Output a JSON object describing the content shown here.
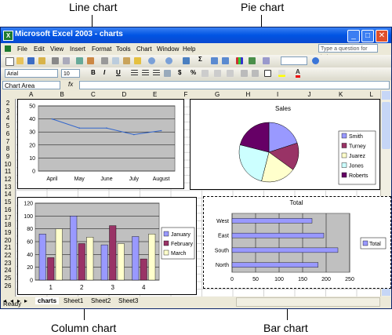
{
  "callouts": {
    "line_chart": "Line chart",
    "pie_chart": "Pie chart",
    "column_chart": "Column chart",
    "bar_chart": "Bar chart"
  },
  "window": {
    "title": "Microsoft Excel 2003 - charts",
    "help_placeholder": "Type a question for help"
  },
  "menu": [
    "File",
    "Edit",
    "View",
    "Insert",
    "Format",
    "Tools",
    "Chart",
    "Window",
    "Help"
  ],
  "formatting": {
    "font": "Arial",
    "size": "10",
    "bold": "B",
    "italic": "I",
    "underline": "U"
  },
  "name_box": "Chart Area",
  "columns": [
    "A",
    "B",
    "C",
    "D",
    "E",
    "F",
    "G",
    "H",
    "I",
    "J",
    "K",
    "L"
  ],
  "rows": [
    "2",
    "3",
    "4",
    "5",
    "6",
    "7",
    "8",
    "9",
    "10",
    "11",
    "12",
    "13",
    "14",
    "15",
    "16",
    "17",
    "18",
    "19",
    "20",
    "21",
    "22",
    "23",
    "24",
    "25",
    "26"
  ],
  "sheets": [
    "charts",
    "Sheet1",
    "Sheet2",
    "Sheet3"
  ],
  "status": "Ready",
  "icons": [
    "excel-logo-icon",
    "minimize-icon",
    "maximize-icon",
    "close-icon",
    "new-icon",
    "open-icon",
    "save-icon",
    "print-icon",
    "cut-icon",
    "copy-icon",
    "paste-icon",
    "undo-icon",
    "chart-wizard-icon",
    "sum-icon",
    "sort-icon",
    "align-left-icon",
    "center-icon",
    "align-right-icon",
    "currency-icon",
    "percent-icon",
    "border-icon",
    "fill-color-icon",
    "font-color-icon"
  ],
  "colors": {
    "title_bar": "#0054e3",
    "plot_gray": "#c0c0c0",
    "series1": "#9999ff",
    "series2": "#993366",
    "series3": "#ffffcc",
    "series4": "#ccffff",
    "series5": "#660066",
    "line": "#3366cc"
  },
  "chart_data": [
    {
      "type": "line",
      "categories": [
        "April",
        "May",
        "June",
        "July",
        "August"
      ],
      "values": [
        40,
        33,
        33,
        28,
        31
      ],
      "ylim": [
        0,
        50
      ],
      "yticks": [
        0,
        10,
        20,
        30,
        40,
        50
      ],
      "grid": true
    },
    {
      "type": "pie",
      "title": "Sales",
      "categories": [
        "Smith",
        "Turney",
        "Juarez",
        "Jones",
        "Roberts"
      ],
      "values": [
        20,
        15,
        19,
        25,
        21
      ],
      "legend": "right"
    },
    {
      "type": "bar",
      "categories": [
        "1",
        "2",
        "3",
        "4"
      ],
      "series": [
        {
          "name": "January",
          "values": [
            72,
            100,
            55,
            68
          ]
        },
        {
          "name": "February",
          "values": [
            35,
            57,
            85,
            33
          ]
        },
        {
          "name": "March",
          "values": [
            80,
            67,
            57,
            72
          ]
        }
      ],
      "ylim": [
        0,
        120
      ],
      "yticks": [
        0,
        20,
        40,
        60,
        80,
        100,
        120
      ],
      "legend": "right"
    },
    {
      "type": "bar",
      "orientation": "horizontal",
      "title": "Total",
      "categories": [
        "West",
        "East",
        "South",
        "North"
      ],
      "values": [
        170,
        195,
        225,
        183
      ],
      "xlim": [
        0,
        250
      ],
      "xticks": [
        0,
        50,
        100,
        150,
        200,
        250
      ],
      "legend": "right",
      "series_name": "Total"
    }
  ]
}
